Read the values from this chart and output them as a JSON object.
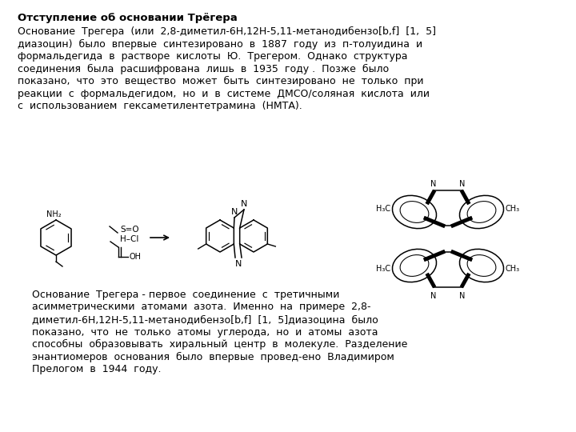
{
  "title": "Отступление об основании Трёгера",
  "para1_lines": [
    "Основание  Трегера  (или  2,8-диметил-6H,12H-5,11-метанодибензо[b,f]  [1,  5]",
    "диазоцин)  было  впервые  синтезировано  в  1887  году  из  п-толуидина  и",
    "формальдегида  в  растворе  кислоты  Ю.  Трегером.  Однако  структура",
    "соединения  была  расшифрована  лишь  в  1935  году .  Позже  было",
    "показано,  что  это  вещество  может  быть  синтезировано  не  только  при",
    "реакции  с  формальдегидом,  но  и  в  системе  ДМСО/соляная  кислота  или",
    "с  использованием  гексаметилентетрамина  (НМТА)."
  ],
  "para2_lines": [
    "Основание  Трегера - первое  соединение  с  третичными",
    "асимметрическими  атомами  азота.  Именно  на  примере  2,8-",
    "диметил-6H,12H-5,11-метанодибензо[b,f]  [1,  5]диазоцина  было",
    "показано,  что  не  только  атомы  углерода,  но  и  атомы  азота",
    "способны  образовывать  хиральный  центр  в  молекуле.  Разделение",
    "энантиомеров  основания  было  впервые  провед-ено  Владимиром",
    "Прелогом  в  1944  году."
  ],
  "bg_color": "#ffffff",
  "text_color": "#000000",
  "title_fontsize": 9.5,
  "body_fontsize": 9.0
}
